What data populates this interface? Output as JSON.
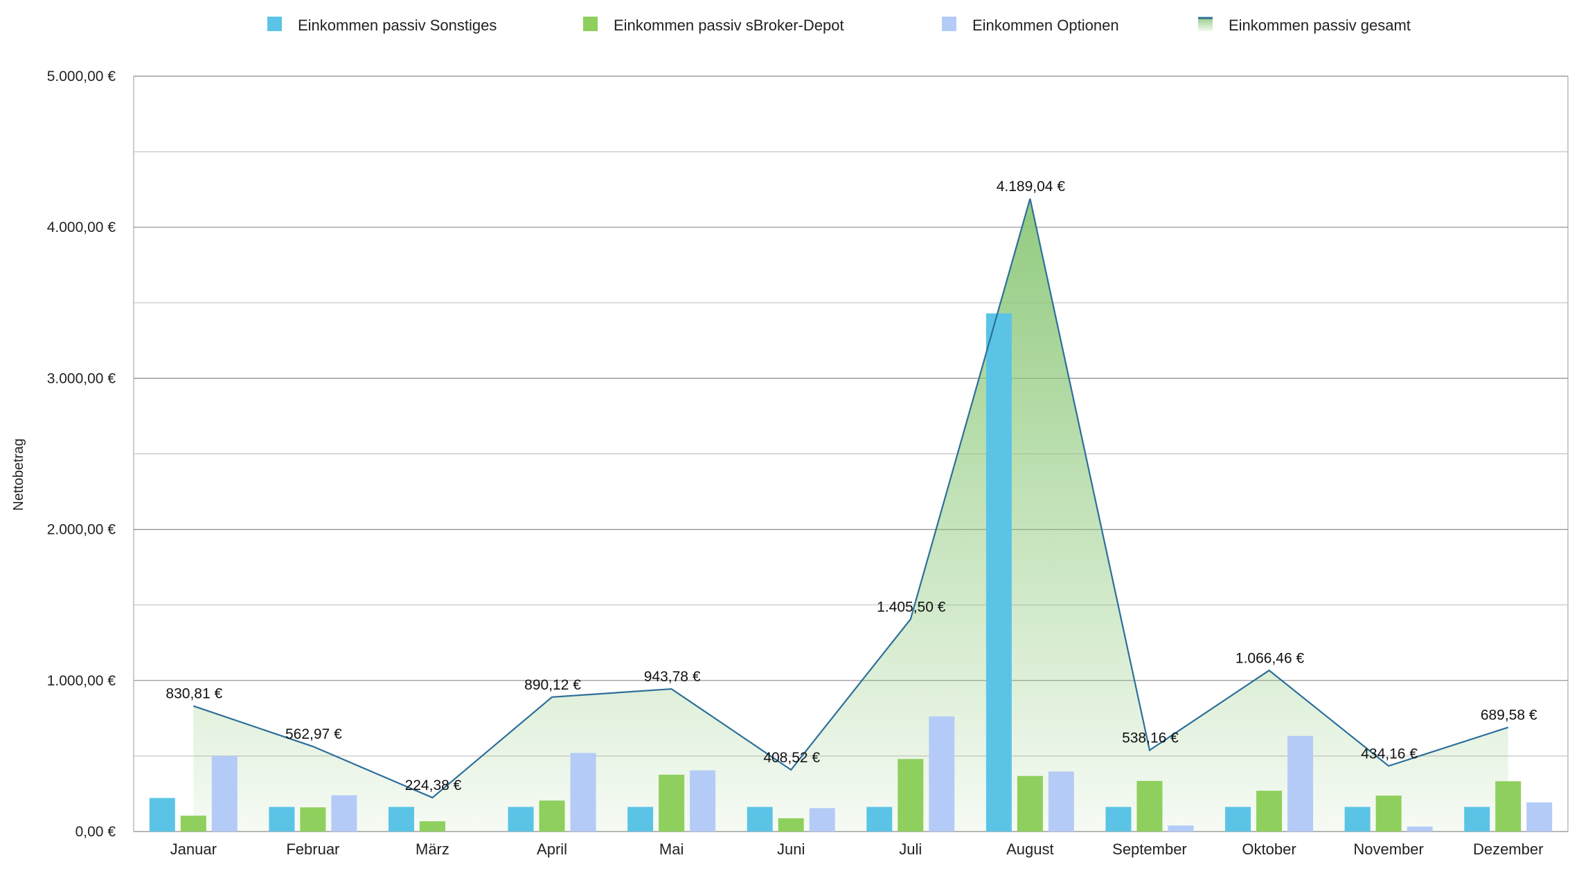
{
  "chart_data": {
    "type": "bar",
    "title": "",
    "xlabel": "",
    "ylabel": "Nettobetrag",
    "ylim": [
      0,
      5000
    ],
    "yticks": [
      0,
      1000,
      2000,
      3000,
      4000,
      5000
    ],
    "ytick_labels": [
      "0,00 €",
      "1.000,00 €",
      "2.000,00 €",
      "3.000,00 €",
      "4.000,00 €",
      "5.000,00 €"
    ],
    "grid": true,
    "legend_position": "top",
    "categories": [
      "Januar",
      "Februar",
      "März",
      "April",
      "Mai",
      "Juni",
      "Juli",
      "August",
      "September",
      "Oktober",
      "November",
      "Dezember"
    ],
    "series": [
      {
        "name": "Einkommen passiv Sonstiges",
        "type": "bar",
        "color": "#5BC4E6",
        "values": [
          222,
          163,
          163,
          163,
          163,
          163,
          163,
          3430,
          163,
          163,
          163,
          163
        ]
      },
      {
        "name": "Einkommen passiv sBroker-Depot",
        "type": "bar",
        "color": "#8ECF5E",
        "values": [
          105,
          160,
          68,
          205,
          376,
          88,
          480,
          368,
          335,
          270,
          238,
          333
        ]
      },
      {
        "name": "Einkommen Optionen",
        "type": "bar",
        "color": "#B5CBF7",
        "values": [
          500,
          240,
          0,
          520,
          405,
          155,
          762,
          397,
          40,
          633,
          33,
          193
        ]
      },
      {
        "name": "Einkommen passiv gesamt",
        "type": "area",
        "line_color": "#2C6E9A",
        "fill_color": "#8CC879",
        "values": [
          830.81,
          562.97,
          224.38,
          890.12,
          943.78,
          408.52,
          1405.5,
          4189.04,
          538.16,
          1066.46,
          434.16,
          689.58
        ],
        "labels": [
          "830,81 €",
          "562,97 €",
          "224,38 €",
          "890,12 €",
          "943,78 €",
          "408,52 €",
          "1.405,50 €",
          "4.189,04 €",
          "538,16 €",
          "1.066,46 €",
          "434,16 €",
          "689,58 €"
        ]
      }
    ]
  }
}
